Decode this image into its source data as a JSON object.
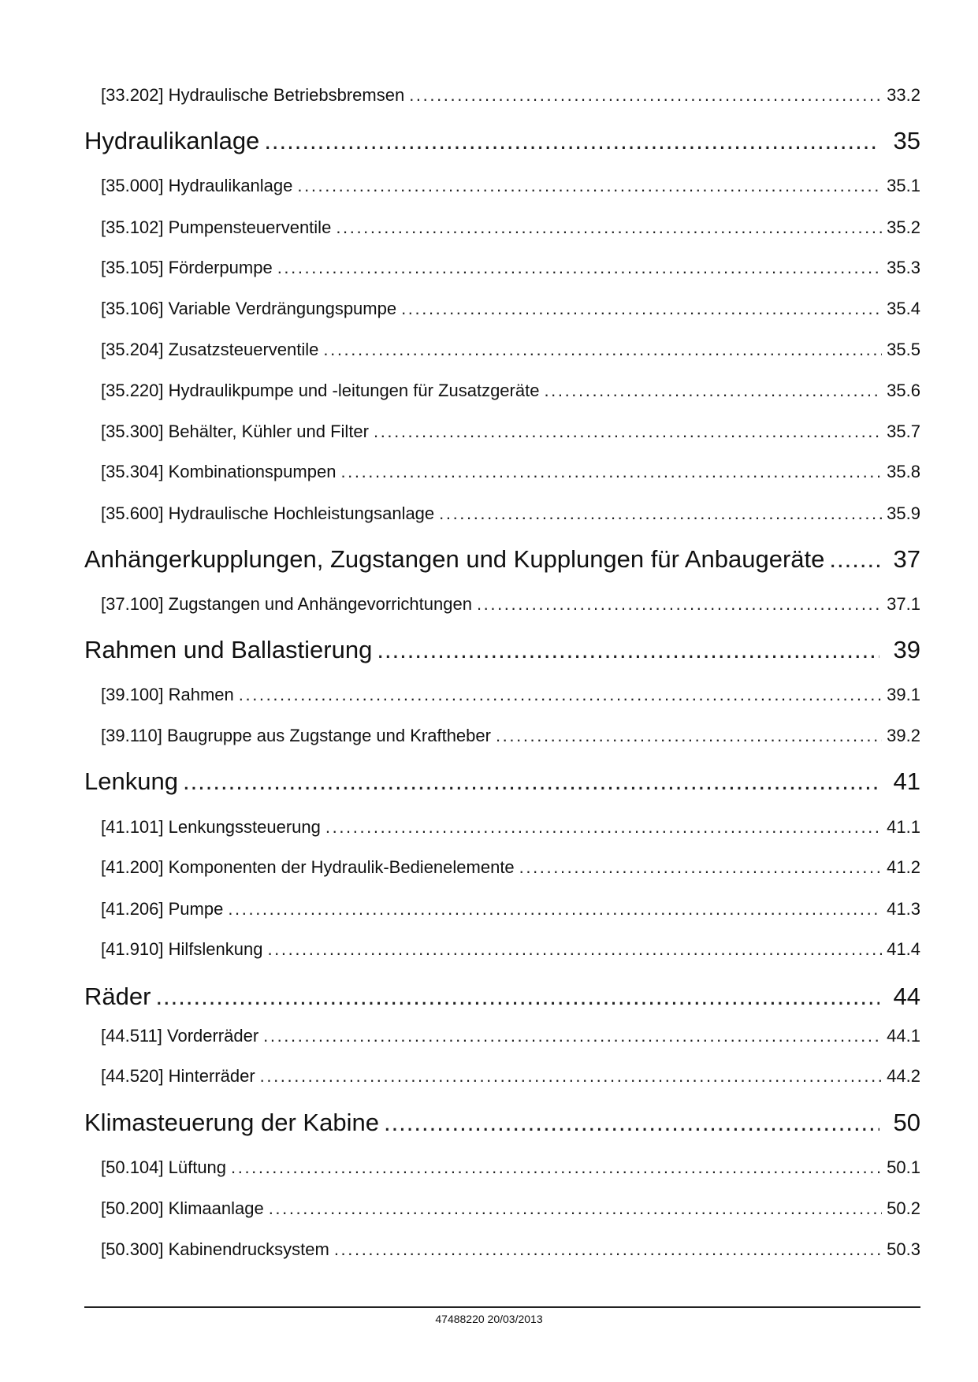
{
  "toc": [
    {
      "level": "sub",
      "label": "[33.202] Hydraulische Betriebsbremsen",
      "page": "33.2"
    },
    {
      "level": "head",
      "label": "Hydraulikanlage",
      "page": "35"
    },
    {
      "level": "sub",
      "label": "[35.000] Hydraulikanlage",
      "page": "35.1"
    },
    {
      "level": "sub",
      "label": "[35.102] Pumpensteuerventile",
      "page": "35.2"
    },
    {
      "level": "sub",
      "label": "[35.105] Förderpumpe",
      "page": "35.3"
    },
    {
      "level": "sub",
      "label": "[35.106] Variable Verdrängungspumpe",
      "page": "35.4"
    },
    {
      "level": "sub",
      "label": "[35.204] Zusatzsteuerventile",
      "page": "35.5"
    },
    {
      "level": "sub",
      "label": "[35.220] Hydraulikpumpe und -leitungen für Zusatzgeräte",
      "page": "35.6"
    },
    {
      "level": "sub",
      "label": "[35.300] Behälter, Kühler und Filter",
      "page": "35.7"
    },
    {
      "level": "sub",
      "label": "[35.304] Kombinationspumpen",
      "page": "35.8"
    },
    {
      "level": "sub",
      "label": "[35.600] Hydraulische Hochleistungsanlage",
      "page": "35.9"
    },
    {
      "level": "head",
      "label": "Anhängerkupplungen, Zugstangen und Kupplungen für Anbaugeräte",
      "page": "37"
    },
    {
      "level": "sub",
      "label": "[37.100] Zugstangen und Anhängevorrichtungen",
      "page": "37.1"
    },
    {
      "level": "head",
      "label": "Rahmen und Ballastierung",
      "page": "39"
    },
    {
      "level": "sub",
      "label": "[39.100] Rahmen",
      "page": "39.1"
    },
    {
      "level": "sub",
      "label": "[39.110] Baugruppe aus Zugstange und Kraftheber",
      "page": "39.2"
    },
    {
      "level": "head",
      "label": "Lenkung",
      "page": "41"
    },
    {
      "level": "sub",
      "label": "[41.101] Lenkungssteuerung",
      "page": "41.1"
    },
    {
      "level": "sub",
      "label": "[41.200] Komponenten der Hydraulik-Bedienelemente",
      "page": "41.2"
    },
    {
      "level": "sub",
      "label": "[41.206] Pumpe",
      "page": "41.3"
    },
    {
      "level": "sub",
      "label": "[41.910] Hilfslenkung",
      "page": "41.4"
    },
    {
      "level": "head",
      "label": "Räder",
      "page": "44"
    },
    {
      "level": "sub",
      "label": "[44.511] Vorderräder",
      "page": "44.1"
    },
    {
      "level": "sub",
      "label": "[44.520] Hinterräder",
      "page": "44.2"
    },
    {
      "level": "head",
      "label": "Klimasteuerung der Kabine",
      "page": "50"
    },
    {
      "level": "sub",
      "label": "[50.104] Lüftung",
      "page": "50.1"
    },
    {
      "level": "sub",
      "label": "[50.200] Klimaanlage",
      "page": "50.2"
    },
    {
      "level": "sub",
      "label": "[50.300] Kabinendrucksystem",
      "page": "50.3"
    }
  ],
  "footer": {
    "text": "47488220 20/03/2013"
  }
}
